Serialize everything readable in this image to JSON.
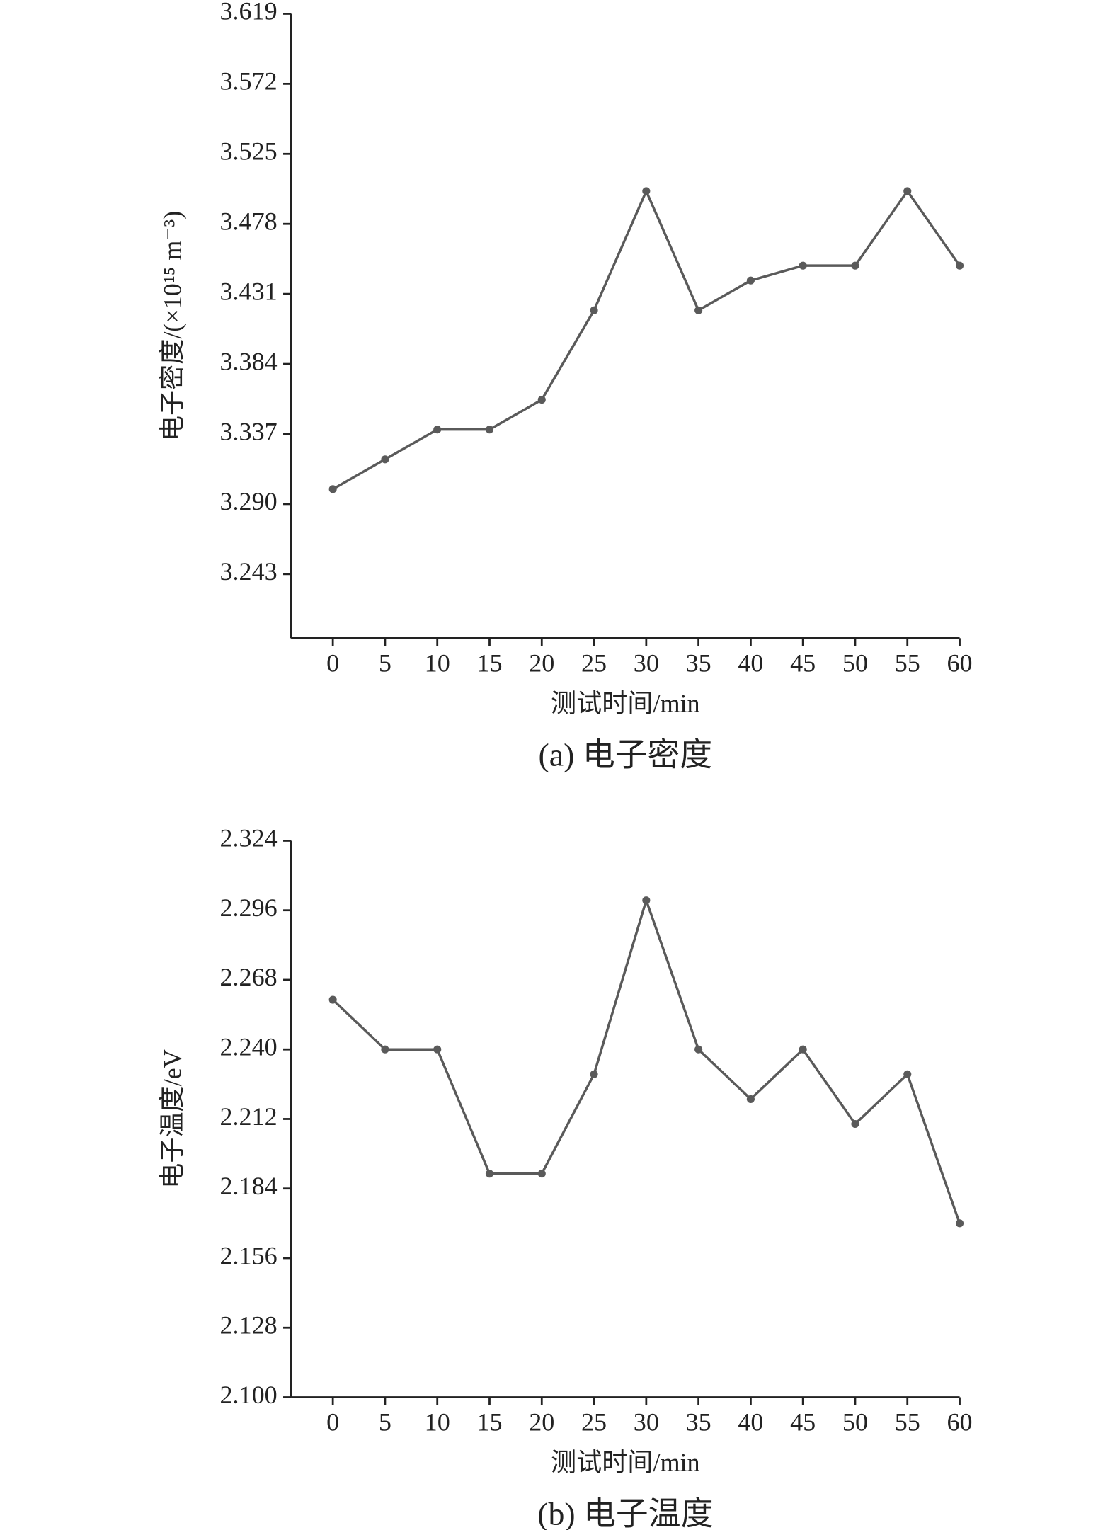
{
  "chart_data": [
    {
      "type": "line",
      "caption": "(a)  电子密度",
      "xlabel": "测试时间/min",
      "ylabel": "电子密度/(×10¹⁵ m⁻³)",
      "x": [
        0,
        5,
        10,
        15,
        20,
        25,
        30,
        35,
        40,
        45,
        50,
        55,
        60
      ],
      "values": [
        3.3,
        3.32,
        3.34,
        3.34,
        3.36,
        3.42,
        3.5,
        3.42,
        3.44,
        3.45,
        3.45,
        3.5,
        3.45
      ],
      "color": "#5a5a5a",
      "xlim": [
        -4,
        60
      ],
      "xticks": [
        0,
        5,
        10,
        15,
        20,
        25,
        30,
        35,
        40,
        45,
        50,
        55,
        60
      ],
      "ylim": [
        3.2,
        3.619
      ],
      "yticks": [
        3.243,
        {
          "value": 3.29,
          "label": "3.290"
        },
        3.337,
        3.384,
        3.431,
        3.478,
        3.525,
        3.572,
        3.619
      ]
    },
    {
      "type": "line",
      "caption": "(b)  电子温度",
      "xlabel": "测试时间/min",
      "ylabel": "电子温度/eV",
      "x": [
        0,
        5,
        10,
        15,
        20,
        25,
        30,
        35,
        40,
        45,
        50,
        55,
        60
      ],
      "values": [
        2.26,
        2.24,
        2.24,
        2.19,
        2.19,
        2.23,
        2.3,
        2.24,
        2.22,
        2.24,
        2.21,
        2.23,
        2.17
      ],
      "color": "#5a5a5a",
      "xlim": [
        -4,
        60
      ],
      "xticks": [
        0,
        5,
        10,
        15,
        20,
        25,
        30,
        35,
        40,
        45,
        50,
        55,
        60
      ],
      "ylim": [
        2.1,
        2.324
      ],
      "yticks": [
        {
          "value": 2.1,
          "label": "2.100"
        },
        2.128,
        2.156,
        2.184,
        2.212,
        {
          "value": 2.24,
          "label": "2.240"
        },
        2.268,
        2.296,
        2.324
      ]
    }
  ]
}
